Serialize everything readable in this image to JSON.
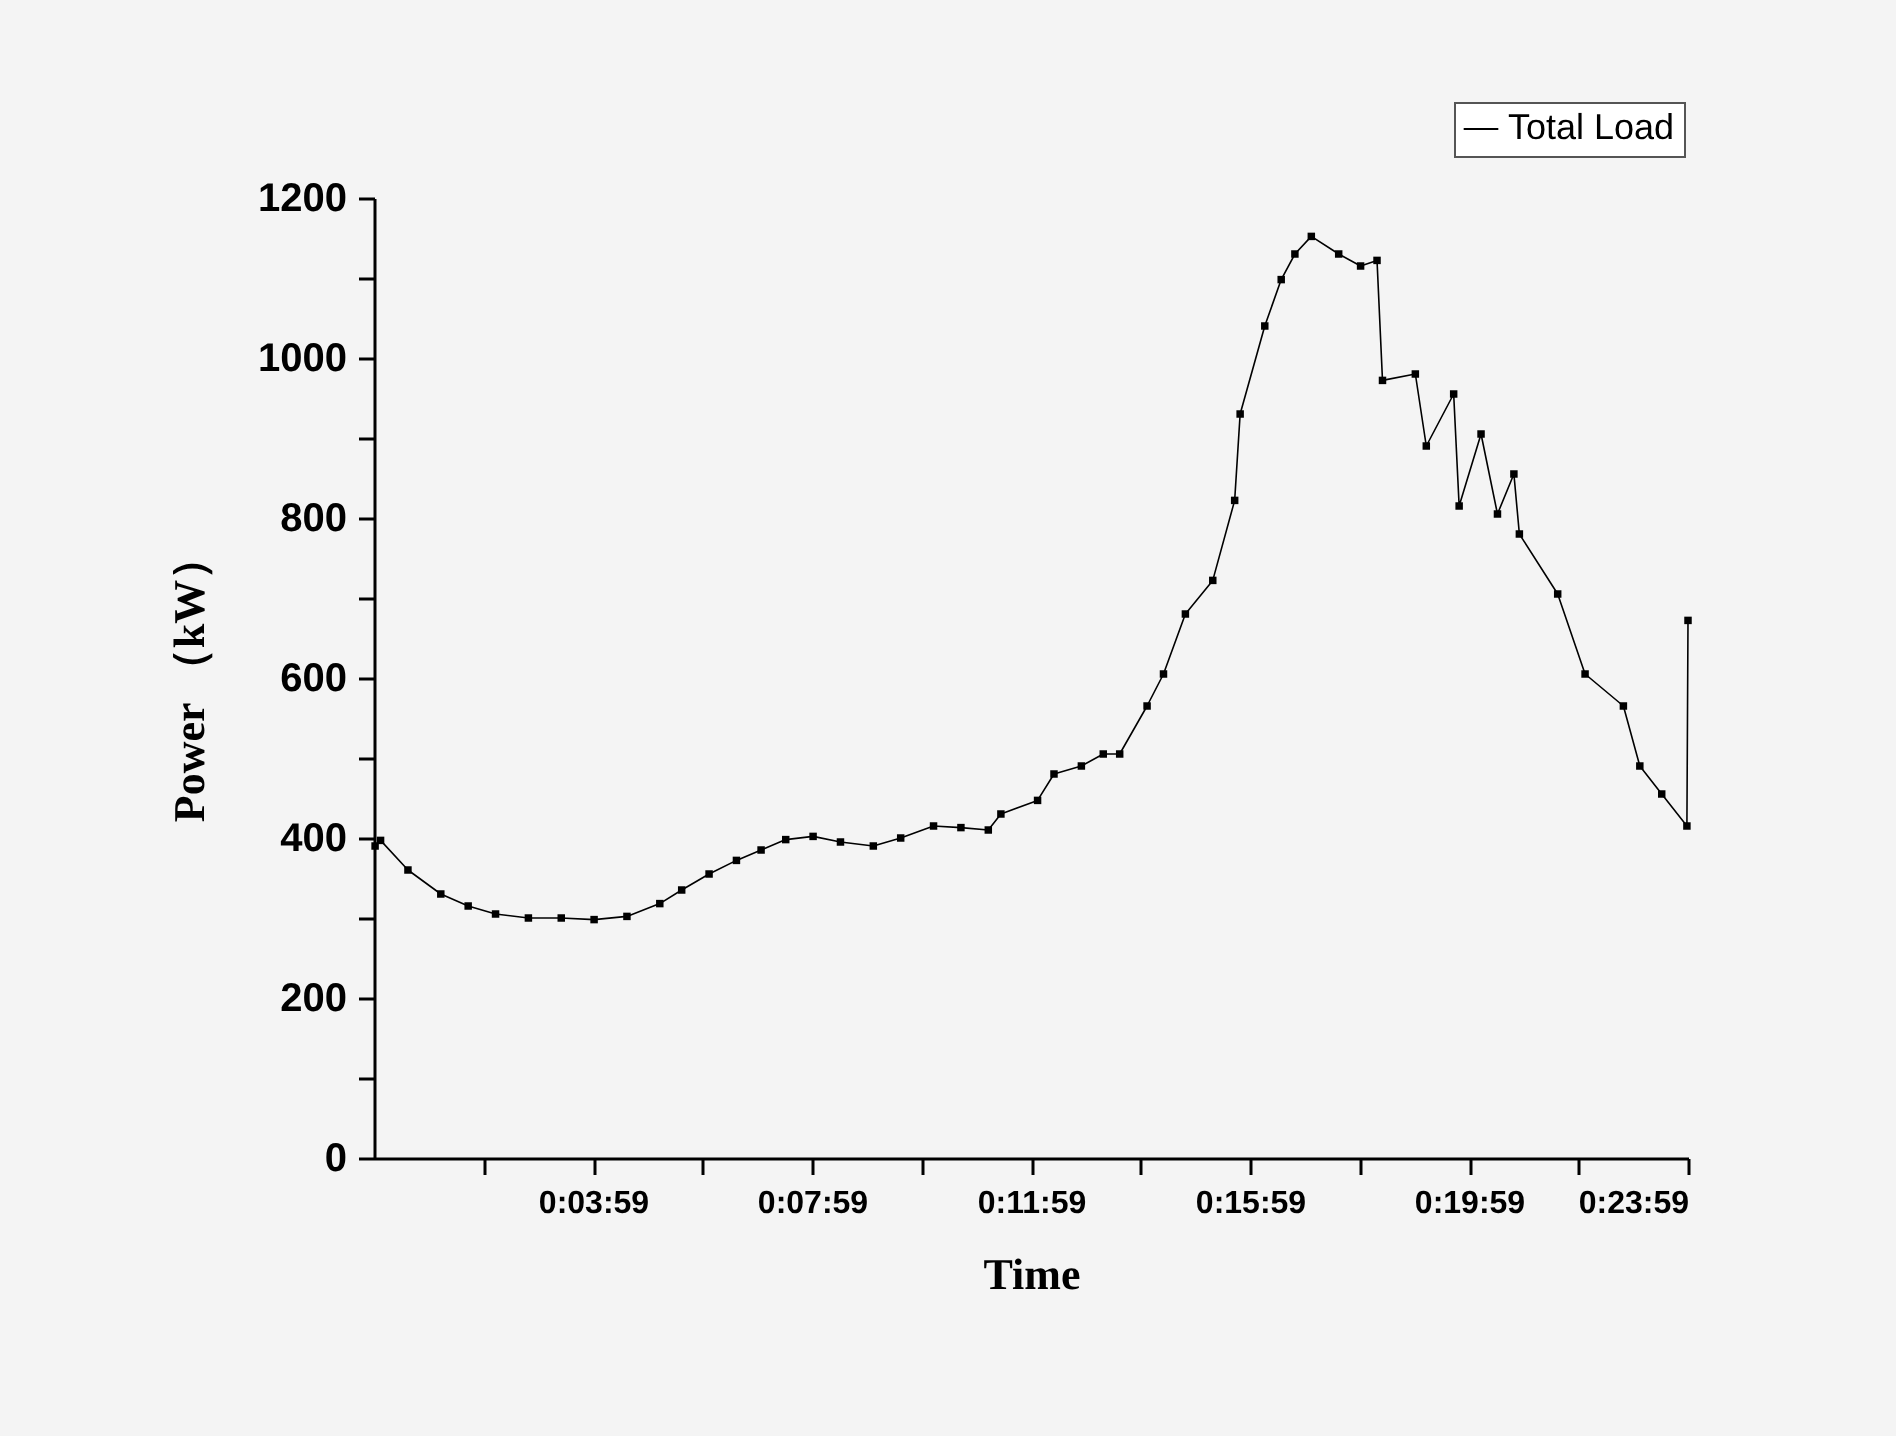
{
  "chart_data": {
    "type": "line",
    "xlabel": "Time",
    "ylabel": "Power （kW）",
    "x": [
      0,
      0.1,
      0.6,
      1.2,
      1.7,
      2.2,
      2.8,
      3.4,
      4.0,
      4.6,
      5.2,
      5.6,
      6.1,
      6.6,
      7.05,
      7.5,
      8.0,
      8.5,
      9.1,
      9.6,
      10.2,
      10.7,
      11.2,
      11.43,
      12.1,
      12.4,
      12.9,
      13.3,
      13.6,
      14.1,
      14.4,
      14.8,
      15.3,
      15.7,
      15.8,
      16.25,
      16.55,
      16.8,
      17.1,
      17.6,
      18.0,
      18.3,
      18.4,
      19.0,
      19.2,
      19.7,
      19.8,
      20.2,
      20.5,
      20.8,
      20.9,
      21.6,
      22.1,
      22.8,
      23.1,
      23.5,
      23.96,
      23.98
    ],
    "series": [
      {
        "name": "Total Load",
        "color": "#000000",
        "values": [
          390,
          397,
          360,
          330,
          315,
          305,
          300,
          300,
          298,
          302,
          318,
          335,
          355,
          372,
          385,
          398,
          402,
          395,
          390,
          400,
          415,
          413,
          410,
          430,
          447,
          480,
          490,
          505,
          505,
          565,
          605,
          680,
          722,
          822,
          930,
          1040,
          1098,
          1130,
          1152,
          1130,
          1115,
          1122,
          972,
          980,
          890,
          955,
          815,
          905,
          805,
          855,
          780,
          705,
          605,
          565,
          490,
          455,
          415,
          672
        ]
      }
    ],
    "xlim": [
      -0.02,
      23.98
    ],
    "xticks": [
      {
        "value": 1.98,
        "label": null
      },
      {
        "value": 3.98,
        "label": "0:03:59"
      },
      {
        "value": 5.98,
        "label": null
      },
      {
        "value": 7.98,
        "label": "0:07:59"
      },
      {
        "value": 9.98,
        "label": null
      },
      {
        "value": 11.98,
        "label": "0:11:59"
      },
      {
        "value": 13.98,
        "label": null
      },
      {
        "value": 15.98,
        "label": "0:15:59"
      },
      {
        "value": 17.98,
        "label": null
      },
      {
        "value": 19.98,
        "label": "0:19:59"
      },
      {
        "value": 21.98,
        "label": null
      },
      {
        "value": 23.98,
        "label": "0:23:59"
      }
    ],
    "ylim": [
      0,
      1200
    ],
    "yticks": [
      0,
      {
        "value": 100,
        "label": null
      },
      200,
      {
        "value": 300,
        "label": null
      },
      400,
      {
        "value": 500,
        "label": null
      },
      600,
      {
        "value": 700,
        "label": null
      },
      800,
      {
        "value": 900,
        "label": null
      },
      1000,
      {
        "value": 1100,
        "label": null
      },
      1200
    ],
    "legend": "top right",
    "marker": "square",
    "line_style": "solid",
    "grid": false
  }
}
